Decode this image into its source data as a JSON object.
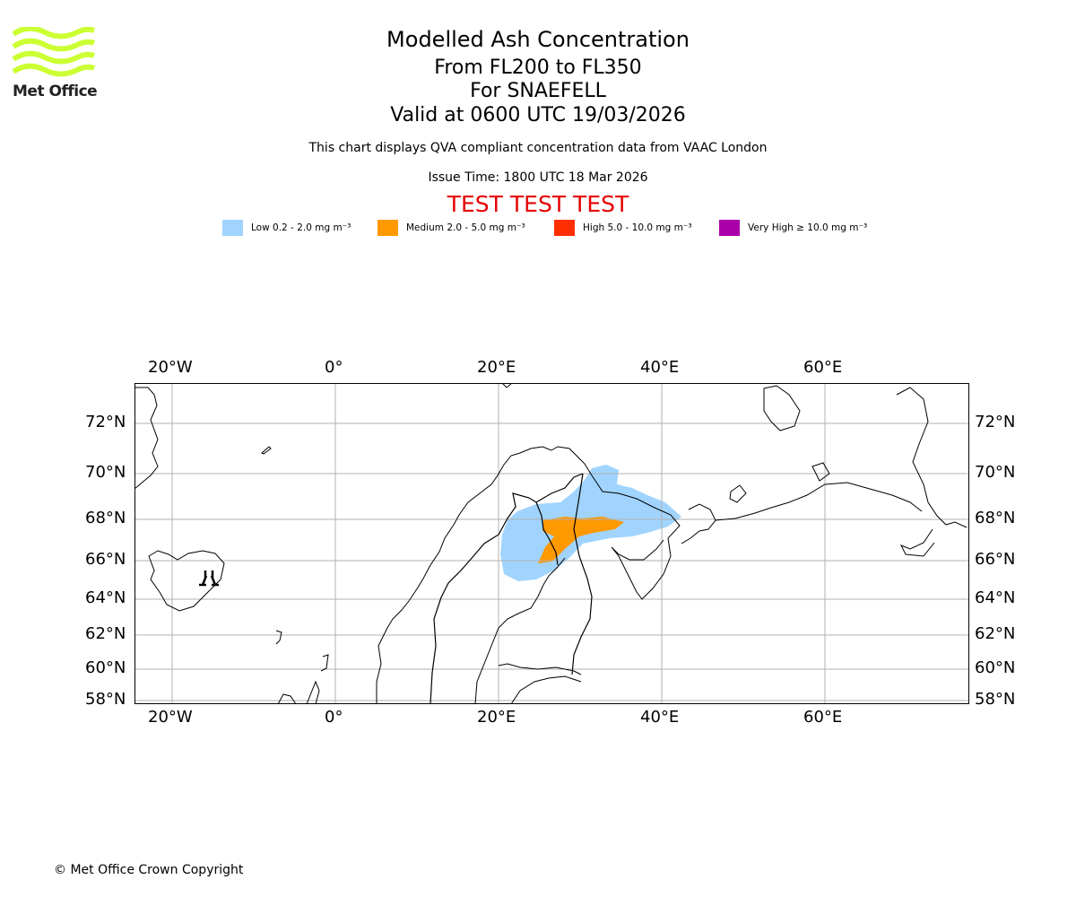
{
  "header": {
    "title": "Modelled Ash Concentration",
    "level_range": "From FL200 to FL350",
    "volcano_line": "For SNAEFELL",
    "valid_line": "Valid at 0600 UTC 19/03/2026",
    "description": "This chart displays QVA compliant concentration data from VAAC London",
    "issue_time": "Issue Time: 1800 UTC 18 Mar 2026",
    "test_banner": "TEST TEST TEST",
    "test_color": "#e60000"
  },
  "logo": {
    "text": "Met Office",
    "icon": "met-office-waves-logo",
    "color": "#ccff33"
  },
  "legend": [
    {
      "label": "Low 0.2 - 2.0 mg m⁻³",
      "color": "#a0d4ff"
    },
    {
      "label": "Medium 2.0 - 5.0 mg m⁻³",
      "color": "#ff9900"
    },
    {
      "label": "High 5.0 - 10.0 mg m⁻³",
      "color": "#ff2e00"
    },
    {
      "label": "Very High  ≥  10.0 mg m⁻³",
      "color": "#aa00aa"
    }
  ],
  "map": {
    "lon_ticks": [
      "20°W",
      "0°",
      "20°E",
      "40°E",
      "60°E"
    ],
    "lat_ticks": [
      "72°N",
      "70°N",
      "68°N",
      "66°N",
      "64°N",
      "62°N",
      "60°N",
      "58°N"
    ],
    "volcano_marker": "volcano-icon"
  },
  "footer": {
    "copyright": "© Met Office Crown Copyright"
  }
}
